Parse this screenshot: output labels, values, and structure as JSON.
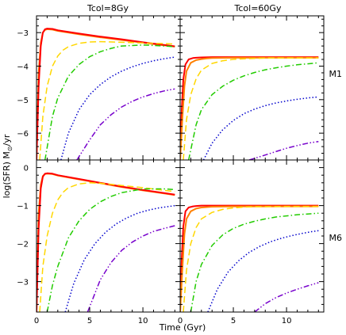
{
  "figure": {
    "ylabel_prefix": "log(SFR) M",
    "ylabel_sub": "⊙",
    "ylabel_suffix": "/yr",
    "xlabel": "Time (Gyr)"
  },
  "colors": {
    "red": "#ff0000",
    "orange": "#ff8000",
    "yellow": "#ffd700",
    "green": "#22cc00",
    "blue": "#0000cc",
    "purple": "#7700cc"
  },
  "chart_data": [
    {
      "type": "line",
      "panel": "top-left",
      "column_title": "Tcol=8Gy",
      "row_label": "",
      "xlim": [
        0,
        13.5
      ],
      "ylim": [
        -6.8,
        -2.5
      ],
      "xticks": [
        0,
        5,
        10
      ],
      "yticks": [
        -6,
        -5,
        -4,
        -3
      ],
      "series": [
        {
          "color": "orange",
          "style": "solid",
          "x": [
            0,
            0.2,
            0.4,
            0.6,
            0.8,
            1,
            1.5,
            2,
            4,
            6,
            8,
            10,
            12,
            13
          ],
          "y": [
            -6.8,
            -4.2,
            -3.3,
            -3.0,
            -2.92,
            -2.9,
            -2.91,
            -2.95,
            -3.05,
            -3.14,
            -3.22,
            -3.3,
            -3.38,
            -3.42
          ]
        },
        {
          "color": "red",
          "style": "solid",
          "x": [
            0,
            0.2,
            0.4,
            0.6,
            0.8,
            1,
            1.5,
            2,
            4,
            6,
            8,
            10,
            12,
            13
          ],
          "y": [
            -6.8,
            -4.6,
            -3.4,
            -3.0,
            -2.9,
            -2.88,
            -2.89,
            -2.93,
            -3.03,
            -3.12,
            -3.2,
            -3.29,
            -3.37,
            -3.41
          ]
        },
        {
          "color": "yellow",
          "style": "long-dash",
          "x": [
            0.3,
            0.6,
            1,
            1.5,
            2,
            2.5,
            3,
            4,
            5,
            6,
            8,
            10,
            12,
            13
          ],
          "y": [
            -6.8,
            -5.5,
            -4.6,
            -4.0,
            -3.7,
            -3.52,
            -3.42,
            -3.32,
            -3.28,
            -3.27,
            -3.29,
            -3.31,
            -3.33,
            -3.34
          ]
        },
        {
          "color": "green",
          "style": "dash-dot",
          "x": [
            0.8,
            1.5,
            2,
            3,
            4,
            5,
            6,
            7,
            8,
            10,
            12,
            13
          ],
          "y": [
            -6.8,
            -5.5,
            -4.95,
            -4.3,
            -3.95,
            -3.72,
            -3.57,
            -3.47,
            -3.4,
            -3.37,
            -3.4,
            -3.42
          ]
        },
        {
          "color": "blue",
          "style": "dotted",
          "x": [
            2.3,
            3,
            4,
            5,
            6,
            7,
            8,
            9,
            10,
            11,
            12,
            13
          ],
          "y": [
            -6.8,
            -6.0,
            -5.3,
            -4.85,
            -4.55,
            -4.32,
            -4.15,
            -4.02,
            -3.92,
            -3.84,
            -3.78,
            -3.73
          ]
        },
        {
          "color": "purple",
          "style": "dash-dot-dot",
          "x": [
            3.8,
            5,
            6,
            7,
            8,
            9,
            10,
            11,
            12,
            13
          ],
          "y": [
            -6.8,
            -6.2,
            -5.75,
            -5.45,
            -5.22,
            -5.05,
            -4.92,
            -4.82,
            -4.74,
            -4.68
          ]
        }
      ]
    },
    {
      "type": "line",
      "panel": "top-right",
      "column_title": "Tcol=60Gy",
      "row_label": "M1",
      "xlim": [
        0,
        13.5
      ],
      "ylim": [
        -6.8,
        -2.5
      ],
      "xticks": [
        0,
        5,
        10
      ],
      "yticks": [
        -6,
        -5,
        -4,
        -3
      ],
      "series": [
        {
          "color": "red",
          "style": "solid",
          "x": [
            0,
            0.15,
            0.3,
            0.5,
            0.8,
            1.2,
            1.5,
            2,
            3,
            5,
            8,
            10,
            13
          ],
          "y": [
            -6.8,
            -5.3,
            -4.4,
            -3.95,
            -3.8,
            -3.76,
            -3.75,
            -3.74,
            -3.73,
            -3.73,
            -3.73,
            -3.73,
            -3.73
          ]
        },
        {
          "color": "orange",
          "style": "solid",
          "x": [
            0,
            0.2,
            0.4,
            0.6,
            1,
            1.5,
            2,
            2.5,
            3,
            5,
            8,
            10,
            13
          ],
          "y": [
            -6.8,
            -5.6,
            -4.6,
            -4.15,
            -3.9,
            -3.82,
            -3.79,
            -3.77,
            -3.76,
            -3.75,
            -3.75,
            -3.75,
            -3.75
          ]
        },
        {
          "color": "yellow",
          "style": "long-dash",
          "x": [
            0.3,
            0.6,
            1,
            1.5,
            2,
            3,
            4,
            5,
            6,
            7,
            8,
            10,
            13
          ],
          "y": [
            -6.8,
            -5.6,
            -4.85,
            -4.38,
            -4.12,
            -3.92,
            -3.84,
            -3.8,
            -3.78,
            -3.77,
            -3.76,
            -3.76,
            -3.76
          ]
        },
        {
          "color": "green",
          "style": "dash-dot",
          "x": [
            0.8,
            1.5,
            2,
            3,
            4,
            5,
            6,
            7,
            8,
            9,
            10,
            11,
            13
          ],
          "y": [
            -6.8,
            -5.75,
            -5.3,
            -4.85,
            -4.6,
            -4.42,
            -4.29,
            -4.19,
            -4.11,
            -4.05,
            -4.0,
            -3.96,
            -3.9
          ]
        },
        {
          "color": "blue",
          "style": "dotted",
          "x": [
            2.2,
            3,
            4,
            5,
            6,
            7,
            8,
            9,
            10,
            11,
            12,
            13
          ],
          "y": [
            -6.8,
            -6.3,
            -5.9,
            -5.62,
            -5.42,
            -5.28,
            -5.18,
            -5.1,
            -5.04,
            -4.99,
            -4.95,
            -4.92
          ]
        },
        {
          "color": "purple",
          "style": "dash-dot-dot",
          "x": [
            6.5,
            8,
            9,
            10,
            11,
            12,
            13
          ],
          "y": [
            -6.8,
            -6.65,
            -6.55,
            -6.45,
            -6.37,
            -6.3,
            -6.25
          ]
        }
      ]
    },
    {
      "type": "line",
      "panel": "bottom-left",
      "column_title": "",
      "row_label": "",
      "xlim": [
        0,
        13.5
      ],
      "ylim": [
        -3.8,
        0.2
      ],
      "xticks": [
        0,
        5,
        10
      ],
      "yticks": [
        -3,
        -2,
        -1,
        0
      ],
      "series": [
        {
          "color": "orange",
          "style": "solid",
          "x": [
            0,
            0.2,
            0.4,
            0.6,
            0.8,
            1,
            1.5,
            2,
            4,
            6,
            8,
            10,
            12,
            13
          ],
          "y": [
            -3.8,
            -1.2,
            -0.45,
            -0.22,
            -0.17,
            -0.16,
            -0.17,
            -0.21,
            -0.31,
            -0.41,
            -0.51,
            -0.6,
            -0.68,
            -0.72
          ]
        },
        {
          "color": "red",
          "style": "solid",
          "x": [
            0,
            0.2,
            0.4,
            0.6,
            0.8,
            1,
            1.5,
            2,
            4,
            6,
            8,
            10,
            12,
            13
          ],
          "y": [
            -3.8,
            -1.6,
            -0.55,
            -0.24,
            -0.16,
            -0.15,
            -0.16,
            -0.2,
            -0.3,
            -0.4,
            -0.5,
            -0.59,
            -0.67,
            -0.71
          ]
        },
        {
          "color": "yellow",
          "style": "long-dash",
          "x": [
            0.3,
            0.6,
            1,
            1.5,
            2,
            2.5,
            3,
            4,
            5,
            6,
            8,
            10,
            12,
            13
          ],
          "y": [
            -3.8,
            -2.6,
            -1.8,
            -1.2,
            -0.85,
            -0.65,
            -0.53,
            -0.43,
            -0.4,
            -0.41,
            -0.47,
            -0.53,
            -0.6,
            -0.63
          ]
        },
        {
          "color": "green",
          "style": "dash-dot",
          "x": [
            1,
            1.5,
            2,
            3,
            4,
            5,
            6,
            7,
            8,
            10,
            12,
            13
          ],
          "y": [
            -3.8,
            -3.1,
            -2.6,
            -1.85,
            -1.4,
            -1.1,
            -0.9,
            -0.76,
            -0.66,
            -0.56,
            -0.56,
            -0.58
          ]
        },
        {
          "color": "blue",
          "style": "dotted",
          "x": [
            2.7,
            3.5,
            4.5,
            5.5,
            6.5,
            7.5,
            8.5,
            9.5,
            10.5,
            11.5,
            12.5,
            13
          ],
          "y": [
            -3.8,
            -3.05,
            -2.42,
            -2.0,
            -1.7,
            -1.48,
            -1.32,
            -1.2,
            -1.12,
            -1.06,
            -1.02,
            -1.0
          ]
        },
        {
          "color": "purple",
          "style": "dash-dot-dot",
          "x": [
            4.8,
            6,
            7,
            8,
            9,
            10,
            11,
            12,
            13
          ],
          "y": [
            -3.8,
            -2.95,
            -2.5,
            -2.18,
            -1.96,
            -1.8,
            -1.68,
            -1.6,
            -1.53
          ]
        }
      ]
    },
    {
      "type": "line",
      "panel": "bottom-right",
      "column_title": "",
      "row_label": "M6",
      "xlim": [
        0,
        13.5
      ],
      "ylim": [
        -3.8,
        0.2
      ],
      "xticks": [
        0,
        5,
        10
      ],
      "yticks": [
        -3,
        -2,
        -1
      ],
      "series": [
        {
          "color": "red",
          "style": "solid",
          "x": [
            0,
            0.15,
            0.3,
            0.5,
            0.8,
            1.2,
            1.5,
            2,
            3,
            5,
            8,
            10,
            13
          ],
          "y": [
            -3.8,
            -2.4,
            -1.55,
            -1.15,
            -1.05,
            -1.02,
            -1.01,
            -1.0,
            -1.0,
            -1.0,
            -1.0,
            -1.0,
            -1.0
          ]
        },
        {
          "color": "orange",
          "style": "solid",
          "x": [
            0,
            0.2,
            0.4,
            0.6,
            1,
            1.5,
            2,
            2.5,
            3,
            5,
            8,
            10,
            13
          ],
          "y": [
            -3.8,
            -2.7,
            -1.75,
            -1.35,
            -1.15,
            -1.08,
            -1.05,
            -1.04,
            -1.03,
            -1.02,
            -1.02,
            -1.02,
            -1.02
          ]
        },
        {
          "color": "yellow",
          "style": "long-dash",
          "x": [
            0.3,
            0.6,
            1,
            1.5,
            2,
            3,
            4,
            5,
            6,
            7,
            8,
            10,
            13
          ],
          "y": [
            -3.8,
            -2.7,
            -2.0,
            -1.58,
            -1.35,
            -1.18,
            -1.1,
            -1.06,
            -1.04,
            -1.03,
            -1.03,
            -1.02,
            -1.02
          ]
        },
        {
          "color": "green",
          "style": "dash-dot",
          "x": [
            1,
            1.5,
            2,
            3,
            4,
            5,
            6,
            7,
            8,
            9,
            10,
            11,
            13
          ],
          "y": [
            -3.8,
            -3.0,
            -2.55,
            -2.05,
            -1.77,
            -1.6,
            -1.49,
            -1.41,
            -1.35,
            -1.3,
            -1.27,
            -1.24,
            -1.2
          ]
        },
        {
          "color": "blue",
          "style": "dotted",
          "x": [
            2.6,
            3.5,
            4.5,
            5.5,
            6.5,
            7.5,
            8.5,
            9.5,
            10.5,
            11.5,
            12.5,
            13
          ],
          "y": [
            -3.8,
            -3.2,
            -2.75,
            -2.45,
            -2.23,
            -2.07,
            -1.95,
            -1.86,
            -1.79,
            -1.73,
            -1.68,
            -1.66
          ]
        },
        {
          "color": "purple",
          "style": "dash-dot-dot",
          "x": [
            7.0,
            8,
            9,
            10,
            11,
            12,
            13
          ],
          "y": [
            -3.8,
            -3.58,
            -3.42,
            -3.3,
            -3.2,
            -3.11,
            -3.03
          ]
        }
      ]
    }
  ]
}
